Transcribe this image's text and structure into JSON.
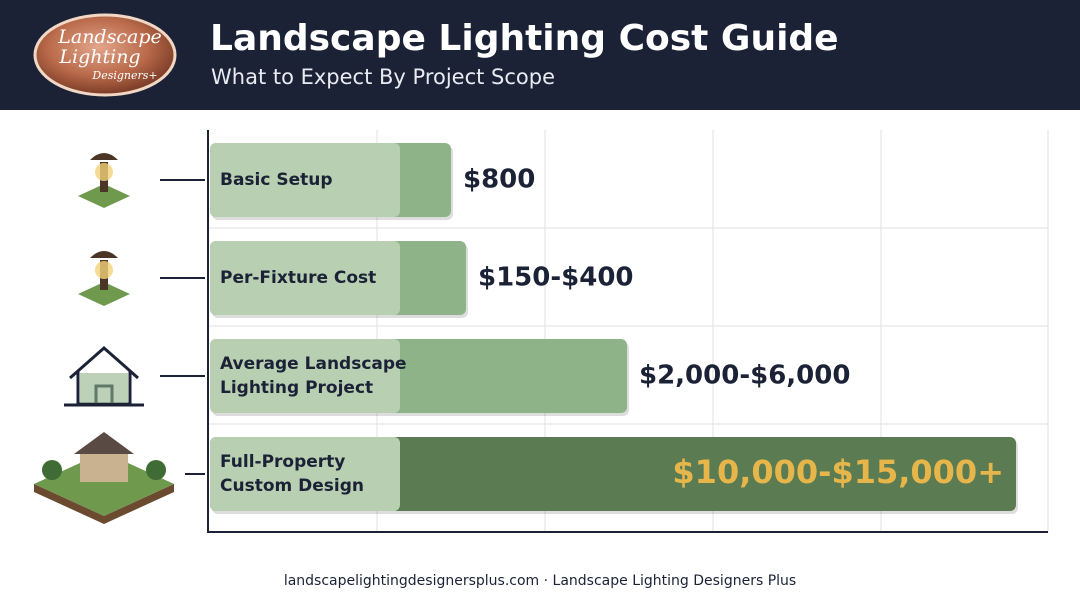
{
  "logo": {
    "lines": [
      "Landscape",
      "Lighting",
      "Designers+"
    ]
  },
  "header": {
    "title": "Landscape Lighting Cost Guide",
    "subtitle": "What to Expect By Project Scope"
  },
  "rows": [
    {
      "label": [
        "Basic Setup"
      ],
      "cost": "$800"
    },
    {
      "label": [
        "Per-Fixture Cost"
      ],
      "cost": "$150-$400"
    },
    {
      "label": [
        "Average Landscape",
        "Lighting Project"
      ],
      "cost": "$2,000-$6,000"
    },
    {
      "label": [
        "Full-Property",
        "Custom Design"
      ],
      "cost": "$10,000-$15,000+"
    }
  ],
  "footer": "landscapelightingdesignersplus.com · Landscape Lighting Designers Plus"
}
